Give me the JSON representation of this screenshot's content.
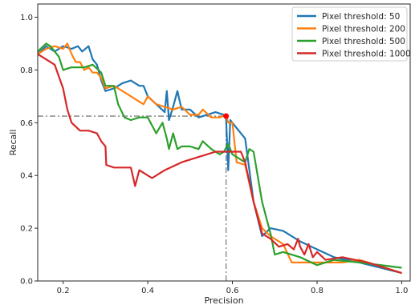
{
  "chart_data": {
    "type": "line",
    "title": "",
    "xlabel": "Precision",
    "ylabel": "Recall",
    "xlim": [
      0.14,
      1.02
    ],
    "ylim": [
      0.0,
      1.05
    ],
    "xticks": [
      0.2,
      0.4,
      0.6,
      0.8,
      1.0
    ],
    "xtick_labels": [
      "0.2",
      "0.4",
      "0.6",
      "0.8",
      "1.0"
    ],
    "yticks": [
      0.0,
      0.2,
      0.4,
      0.6,
      0.8,
      1.0
    ],
    "ytick_labels": [
      "0.0",
      "0.2",
      "0.4",
      "0.6",
      "0.8",
      "1.0"
    ],
    "grid": false,
    "legend_position": "top-right",
    "series": [
      {
        "name": "Pixel threshold: 50",
        "color": "#1f77b4",
        "points": [
          [
            0.14,
            0.86
          ],
          [
            0.16,
            0.89
          ],
          [
            0.18,
            0.87
          ],
          [
            0.2,
            0.89
          ],
          [
            0.22,
            0.88
          ],
          [
            0.235,
            0.89
          ],
          [
            0.245,
            0.87
          ],
          [
            0.26,
            0.89
          ],
          [
            0.27,
            0.84
          ],
          [
            0.28,
            0.82
          ],
          [
            0.29,
            0.76
          ],
          [
            0.3,
            0.72
          ],
          [
            0.32,
            0.73
          ],
          [
            0.34,
            0.75
          ],
          [
            0.36,
            0.76
          ],
          [
            0.38,
            0.74
          ],
          [
            0.39,
            0.74
          ],
          [
            0.4,
            0.7
          ],
          [
            0.42,
            0.67
          ],
          [
            0.44,
            0.64
          ],
          [
            0.445,
            0.72
          ],
          [
            0.45,
            0.61
          ],
          [
            0.46,
            0.66
          ],
          [
            0.47,
            0.72
          ],
          [
            0.48,
            0.65
          ],
          [
            0.5,
            0.65
          ],
          [
            0.52,
            0.62
          ],
          [
            0.54,
            0.63
          ],
          [
            0.56,
            0.64
          ],
          [
            0.58,
            0.63
          ],
          [
            0.585,
            0.62
          ],
          [
            0.59,
            0.42
          ],
          [
            0.595,
            0.61
          ],
          [
            0.61,
            0.58
          ],
          [
            0.63,
            0.54
          ],
          [
            0.65,
            0.3
          ],
          [
            0.67,
            0.17
          ],
          [
            0.69,
            0.2
          ],
          [
            0.72,
            0.19
          ],
          [
            0.76,
            0.15
          ],
          [
            0.8,
            0.12
          ],
          [
            0.84,
            0.09
          ],
          [
            0.9,
            0.07
          ],
          [
            1.0,
            0.03
          ]
        ]
      },
      {
        "name": "Pixel threshold: 200",
        "color": "#ff7f0e",
        "points": [
          [
            0.14,
            0.86
          ],
          [
            0.16,
            0.88
          ],
          [
            0.18,
            0.89
          ],
          [
            0.2,
            0.88
          ],
          [
            0.21,
            0.9
          ],
          [
            0.22,
            0.86
          ],
          [
            0.23,
            0.83
          ],
          [
            0.24,
            0.83
          ],
          [
            0.25,
            0.8
          ],
          [
            0.26,
            0.81
          ],
          [
            0.27,
            0.79
          ],
          [
            0.28,
            0.79
          ],
          [
            0.29,
            0.77
          ],
          [
            0.3,
            0.73
          ],
          [
            0.32,
            0.74
          ],
          [
            0.34,
            0.72
          ],
          [
            0.36,
            0.7
          ],
          [
            0.38,
            0.68
          ],
          [
            0.39,
            0.67
          ],
          [
            0.4,
            0.7
          ],
          [
            0.42,
            0.67
          ],
          [
            0.44,
            0.66
          ],
          [
            0.46,
            0.65
          ],
          [
            0.48,
            0.66
          ],
          [
            0.5,
            0.63
          ],
          [
            0.52,
            0.63
          ],
          [
            0.53,
            0.65
          ],
          [
            0.55,
            0.62
          ],
          [
            0.57,
            0.62
          ],
          [
            0.585,
            0.63
          ],
          [
            0.59,
            0.6
          ],
          [
            0.6,
            0.6
          ],
          [
            0.61,
            0.45
          ],
          [
            0.63,
            0.44
          ],
          [
            0.65,
            0.3
          ],
          [
            0.67,
            0.2
          ],
          [
            0.69,
            0.17
          ],
          [
            0.72,
            0.14
          ],
          [
            0.74,
            0.07
          ],
          [
            0.78,
            0.07
          ],
          [
            0.82,
            0.07
          ],
          [
            0.86,
            0.07
          ],
          [
            0.9,
            0.08
          ],
          [
            1.0,
            0.03
          ]
        ]
      },
      {
        "name": "Pixel threshold: 500",
        "color": "#2ca02c",
        "points": [
          [
            0.14,
            0.87
          ],
          [
            0.16,
            0.9
          ],
          [
            0.17,
            0.89
          ],
          [
            0.19,
            0.85
          ],
          [
            0.2,
            0.8
          ],
          [
            0.22,
            0.81
          ],
          [
            0.25,
            0.81
          ],
          [
            0.27,
            0.82
          ],
          [
            0.29,
            0.79
          ],
          [
            0.3,
            0.74
          ],
          [
            0.32,
            0.74
          ],
          [
            0.33,
            0.67
          ],
          [
            0.345,
            0.62
          ],
          [
            0.36,
            0.61
          ],
          [
            0.38,
            0.62
          ],
          [
            0.4,
            0.62
          ],
          [
            0.42,
            0.56
          ],
          [
            0.435,
            0.6
          ],
          [
            0.445,
            0.54
          ],
          [
            0.45,
            0.5
          ],
          [
            0.46,
            0.56
          ],
          [
            0.47,
            0.5
          ],
          [
            0.48,
            0.51
          ],
          [
            0.5,
            0.51
          ],
          [
            0.52,
            0.5
          ],
          [
            0.53,
            0.53
          ],
          [
            0.55,
            0.5
          ],
          [
            0.57,
            0.48
          ],
          [
            0.58,
            0.49
          ],
          [
            0.59,
            0.52
          ],
          [
            0.6,
            0.48
          ],
          [
            0.62,
            0.46
          ],
          [
            0.63,
            0.45
          ],
          [
            0.64,
            0.5
          ],
          [
            0.65,
            0.49
          ],
          [
            0.67,
            0.3
          ],
          [
            0.69,
            0.18
          ],
          [
            0.7,
            0.1
          ],
          [
            0.72,
            0.11
          ],
          [
            0.76,
            0.09
          ],
          [
            0.8,
            0.06
          ],
          [
            0.84,
            0.08
          ],
          [
            0.9,
            0.07
          ],
          [
            1.0,
            0.05
          ]
        ]
      },
      {
        "name": "Pixel threshold: 1000",
        "color": "#d62728",
        "points": [
          [
            0.14,
            0.86
          ],
          [
            0.16,
            0.84
          ],
          [
            0.18,
            0.82
          ],
          [
            0.2,
            0.73
          ],
          [
            0.21,
            0.65
          ],
          [
            0.22,
            0.6
          ],
          [
            0.24,
            0.57
          ],
          [
            0.26,
            0.57
          ],
          [
            0.28,
            0.56
          ],
          [
            0.29,
            0.53
          ],
          [
            0.3,
            0.51
          ],
          [
            0.302,
            0.44
          ],
          [
            0.32,
            0.43
          ],
          [
            0.34,
            0.43
          ],
          [
            0.36,
            0.43
          ],
          [
            0.37,
            0.36
          ],
          [
            0.38,
            0.42
          ],
          [
            0.4,
            0.4
          ],
          [
            0.41,
            0.39
          ],
          [
            0.44,
            0.42
          ],
          [
            0.48,
            0.45
          ],
          [
            0.52,
            0.47
          ],
          [
            0.56,
            0.49
          ],
          [
            0.585,
            0.49
          ],
          [
            0.6,
            0.49
          ],
          [
            0.62,
            0.49
          ],
          [
            0.63,
            0.45
          ],
          [
            0.65,
            0.3
          ],
          [
            0.67,
            0.18
          ],
          [
            0.69,
            0.16
          ],
          [
            0.71,
            0.13
          ],
          [
            0.73,
            0.14
          ],
          [
            0.745,
            0.12
          ],
          [
            0.755,
            0.16
          ],
          [
            0.76,
            0.13
          ],
          [
            0.77,
            0.1
          ],
          [
            0.78,
            0.14
          ],
          [
            0.79,
            0.09
          ],
          [
            0.8,
            0.11
          ],
          [
            0.82,
            0.08
          ],
          [
            0.86,
            0.09
          ],
          [
            0.92,
            0.07
          ],
          [
            1.0,
            0.03
          ]
        ]
      }
    ],
    "annotations": [
      {
        "type": "hline",
        "y": 0.625,
        "x_range": [
          0.14,
          0.585
        ],
        "style": "dash-dot",
        "color": "#808080"
      },
      {
        "type": "vline",
        "x": 0.585,
        "y_range": [
          0.0,
          0.625
        ],
        "style": "dash-dot",
        "color": "#808080"
      },
      {
        "type": "marker",
        "x": 0.585,
        "y": 0.625,
        "color": "#ff0000"
      }
    ]
  }
}
